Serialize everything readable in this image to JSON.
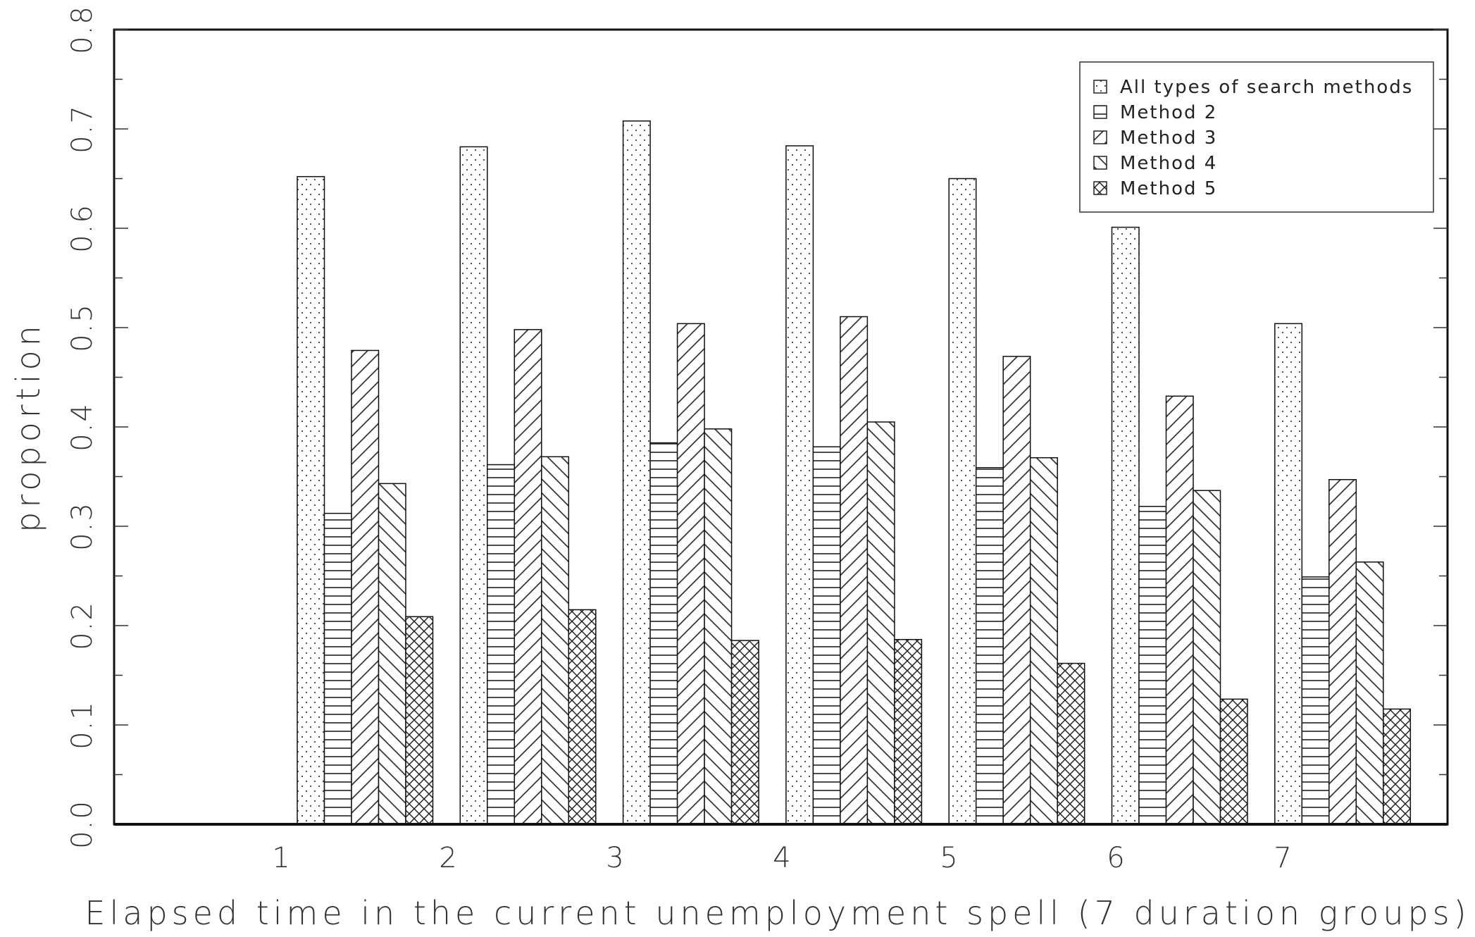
{
  "chart_data": {
    "type": "bar",
    "title": "",
    "xlabel": "Elapsed time in the current unemployment spell (7 duration groups)",
    "ylabel": "proportion",
    "categories": [
      "1",
      "2",
      "3",
      "4",
      "5",
      "6",
      "7"
    ],
    "ylim": [
      0.0,
      0.8
    ],
    "yticks": [
      "0.0",
      "0.1",
      "0.2",
      "0.3",
      "0.4",
      "0.5",
      "0.6",
      "0.7",
      "0.8"
    ],
    "grid": false,
    "legend_position": "top-right",
    "series": [
      {
        "name": "All types of search methods",
        "pattern": "dots",
        "values": [
          0.652,
          0.682,
          0.708,
          0.683,
          0.65,
          0.601,
          0.504
        ]
      },
      {
        "name": "Method 2",
        "pattern": "horizontal",
        "values": [
          0.313,
          0.362,
          0.384,
          0.38,
          0.359,
          0.32,
          0.249
        ]
      },
      {
        "name": "Method 3",
        "pattern": "diagonal-up",
        "values": [
          0.477,
          0.498,
          0.504,
          0.511,
          0.471,
          0.431,
          0.347
        ]
      },
      {
        "name": "Method 4",
        "pattern": "diagonal-down",
        "values": [
          0.343,
          0.37,
          0.398,
          0.405,
          0.369,
          0.336,
          0.264
        ]
      },
      {
        "name": "Method 5",
        "pattern": "crosshatch",
        "values": [
          0.209,
          0.216,
          0.185,
          0.186,
          0.162,
          0.126,
          0.116
        ]
      }
    ]
  }
}
